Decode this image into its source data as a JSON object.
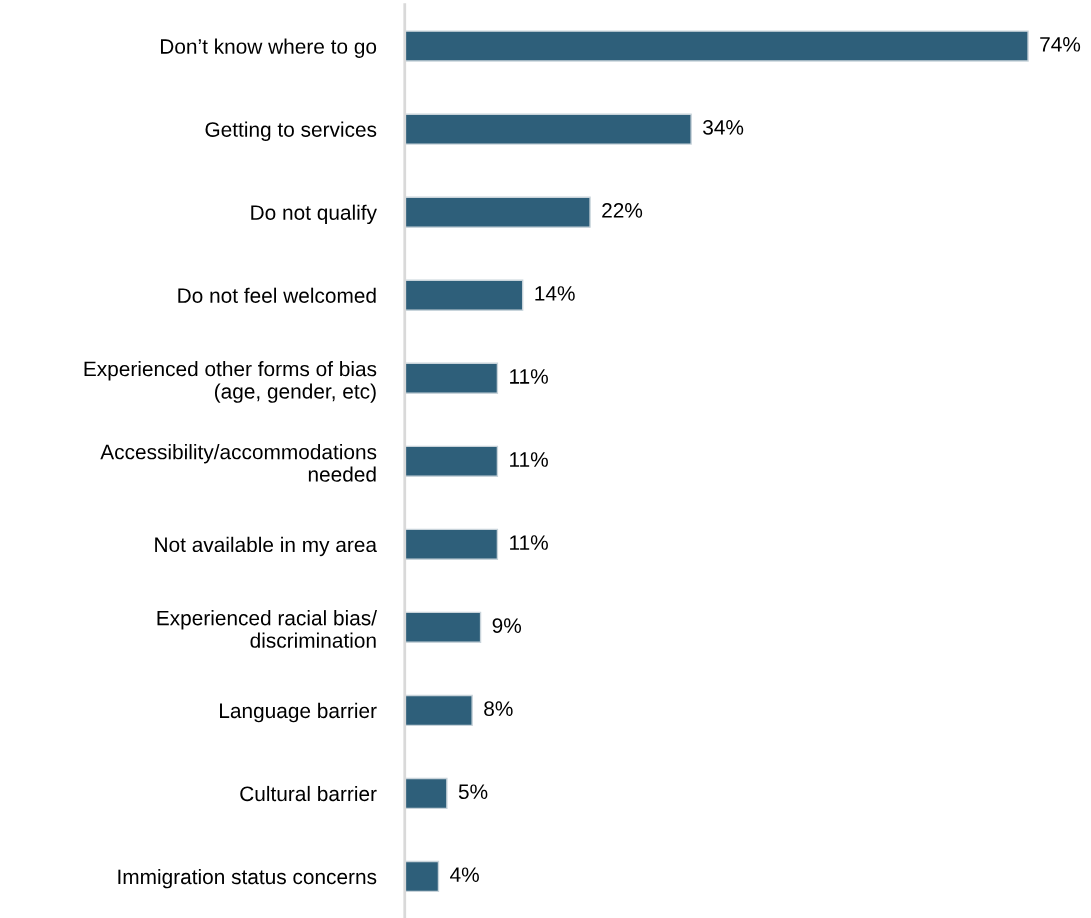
{
  "chart_data": {
    "type": "bar",
    "orientation": "horizontal",
    "categories": [
      "Don’t know where to go",
      "Getting to services",
      "Do not qualify",
      "Do not feel welcomed",
      "Experienced other forms of bias\n(age, gender, etc)",
      "Accessibility/accommodations\nneeded",
      "Not available in my area",
      "Experienced racial bias/\ndiscrimination",
      "Language barrier",
      "Cultural barrier",
      "Immigration status concerns"
    ],
    "values": [
      74,
      34,
      22,
      14,
      11,
      11,
      11,
      9,
      8,
      5,
      4
    ],
    "value_labels": [
      "74%",
      "34%",
      "22%",
      "14%",
      "11%",
      "11%",
      "11%",
      "9%",
      "8%",
      "5%",
      "4%"
    ],
    "color": "#2e5f7a",
    "tick_labels": "y",
    "grid": false,
    "legend": false
  }
}
